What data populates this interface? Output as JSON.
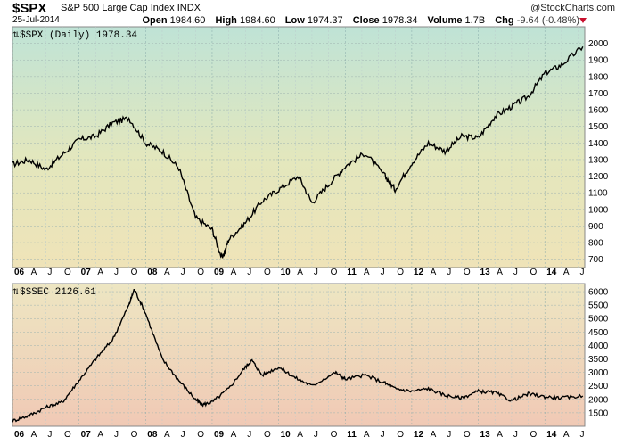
{
  "header": {
    "ticker": "$SPX",
    "name": "S&P 500 Large Cap Index",
    "exchange": "INDX",
    "date": "25-Jul-2014",
    "brand": "@StockCharts.com",
    "open_label": "Open",
    "open": "1984.60",
    "high_label": "High",
    "high": "1984.60",
    "low_label": "Low",
    "low": "1974.37",
    "close_label": "Close",
    "close": "1978.34",
    "volume_label": "Volume",
    "volume": "1.7B",
    "chg_label": "Chg",
    "chg": "-9.64 (-0.48%)"
  },
  "colors": {
    "down": "#c8102e",
    "line": "#000000"
  },
  "chart_data": [
    {
      "type": "line",
      "title": "$SPX (Daily) 1978.34",
      "ylim": [
        650,
        2100
      ],
      "y_ticks": [
        700,
        800,
        900,
        1000,
        1100,
        1200,
        1300,
        1400,
        1500,
        1600,
        1700,
        1800,
        1900,
        2000
      ],
      "x": [
        2006.0,
        2006.25,
        2006.5,
        2006.75,
        2007.0,
        2007.25,
        2007.5,
        2007.75,
        2008.0,
        2008.25,
        2008.5,
        2008.75,
        2009.0,
        2009.15,
        2009.25,
        2009.5,
        2009.75,
        2010.0,
        2010.3,
        2010.5,
        2010.75,
        2011.0,
        2011.3,
        2011.6,
        2011.75,
        2012.0,
        2012.25,
        2012.5,
        2012.75,
        2013.0,
        2013.25,
        2013.5,
        2013.75,
        2014.0,
        2014.25,
        2014.57
      ],
      "values": [
        1270,
        1300,
        1240,
        1330,
        1420,
        1440,
        1520,
        1550,
        1400,
        1350,
        1250,
        950,
        880,
        700,
        820,
        920,
        1050,
        1120,
        1200,
        1040,
        1150,
        1260,
        1340,
        1200,
        1120,
        1280,
        1400,
        1350,
        1440,
        1430,
        1560,
        1620,
        1680,
        1820,
        1870,
        1980
      ]
    },
    {
      "type": "line",
      "title": "$SSEC 2126.61",
      "ylim": [
        1000,
        6300
      ],
      "y_ticks": [
        1500,
        2000,
        2500,
        3000,
        3500,
        4000,
        4500,
        5000,
        5500,
        6000
      ],
      "x": [
        2006.0,
        2006.25,
        2006.5,
        2006.75,
        2007.0,
        2007.25,
        2007.5,
        2007.75,
        2007.83,
        2008.0,
        2008.25,
        2008.5,
        2008.75,
        2008.85,
        2009.0,
        2009.25,
        2009.5,
        2009.6,
        2009.75,
        2010.0,
        2010.25,
        2010.5,
        2010.85,
        2011.0,
        2011.3,
        2011.6,
        2011.75,
        2012.0,
        2012.25,
        2012.5,
        2012.75,
        2013.0,
        2013.25,
        2013.5,
        2013.75,
        2014.0,
        2014.25,
        2014.57
      ],
      "values": [
        1200,
        1400,
        1700,
        1900,
        2700,
        3500,
        4200,
        5500,
        6100,
        5200,
        3500,
        2700,
        2000,
        1800,
        1900,
        2400,
        3200,
        3450,
        2900,
        3200,
        2800,
        2500,
        3000,
        2750,
        2900,
        2600,
        2400,
        2300,
        2400,
        2150,
        2050,
        2300,
        2250,
        1950,
        2200,
        2100,
        2050,
        2127
      ]
    }
  ],
  "x_ticks": [
    "06",
    "A",
    "J",
    "O",
    "07",
    "A",
    "J",
    "O",
    "08",
    "A",
    "J",
    "O",
    "09",
    "A",
    "J",
    "O",
    "10",
    "A",
    "J",
    "O",
    "11",
    "A",
    "J",
    "O",
    "12",
    "A",
    "J",
    "O",
    "13",
    "A",
    "J",
    "O",
    "14",
    "A",
    "J"
  ]
}
